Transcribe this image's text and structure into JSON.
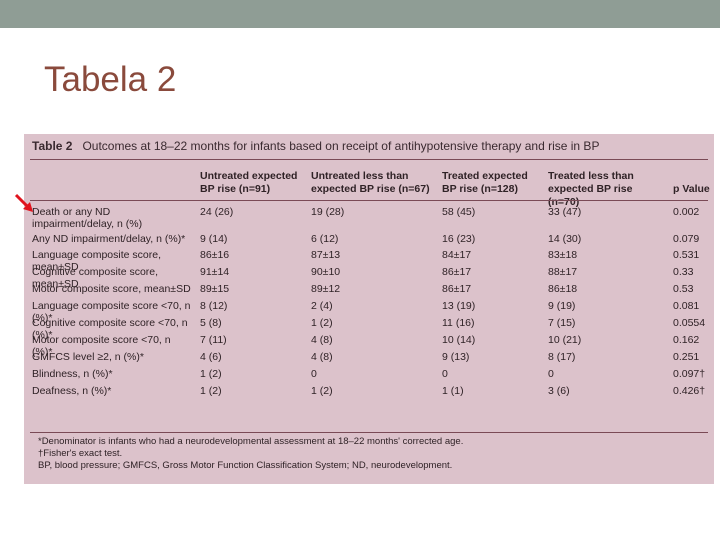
{
  "slide": {
    "title": "Tabela 2"
  },
  "table": {
    "label": "Table 2",
    "caption": "Outcomes at 18–22 months for infants based on receipt of antihypotensive therapy and rise in BP",
    "headers": [
      "",
      "Untreated expected BP rise (n=91)",
      "Untreated less than expected BP rise (n=67)",
      "Treated expected BP rise (n=128)",
      "Treated less than expected BP rise (n=70)",
      "p Value"
    ],
    "rows": [
      [
        "Death or any ND impairment/delay, n (%)",
        "24 (26)",
        "19 (28)",
        "58 (45)",
        "33 (47)",
        "0.002"
      ],
      [
        "Any ND impairment/delay, n (%)*",
        "9 (14)",
        "6 (12)",
        "16 (23)",
        "14 (30)",
        "0.079"
      ],
      [
        "Language composite score, mean±SD",
        "86±16",
        "87±13",
        "84±17",
        "83±18",
        "0.531"
      ],
      [
        "Cognitive composite score, mean±SD",
        "91±14",
        "90±10",
        "86±17",
        "88±17",
        "0.33"
      ],
      [
        "Motor composite score, mean±SD",
        "89±15",
        "89±12",
        "86±17",
        "86±18",
        "0.53"
      ],
      [
        "Language composite score <70, n (%)*",
        "8 (12)",
        "2 (4)",
        "13 (19)",
        "9 (19)",
        "0.081"
      ],
      [
        "Cognitive composite score <70, n (%)*",
        "5 (8)",
        "1 (2)",
        "11 (16)",
        "7 (15)",
        "0.0554"
      ],
      [
        "Motor composite score <70, n (%)*",
        "7 (11)",
        "4 (8)",
        "10 (14)",
        "10 (21)",
        "0.162"
      ],
      [
        "GMFCS level ≥2, n (%)*",
        "4 (6)",
        "4 (8)",
        "9 (13)",
        "8 (17)",
        "0.251"
      ],
      [
        "Blindness, n (%)*",
        "1 (2)",
        "0",
        "0",
        "0",
        "0.097†"
      ],
      [
        "Deafness, n (%)*",
        "1 (2)",
        "1 (2)",
        "1 (1)",
        "3 (6)",
        "0.426†"
      ]
    ],
    "footnotes": [
      "*Denominator is infants who had a neurodevelopmental assessment at 18–22 months' corrected age.",
      "†Fisher's exact test.",
      "BP, blood pressure; GMFCS, Gross Motor Function Classification System; ND, neurodevelopment."
    ]
  },
  "colors": {
    "topbar": "#8f9d95",
    "title": "#8a4a3c",
    "table_bg": "#dcc2cb",
    "arrow": "#e0141e"
  }
}
